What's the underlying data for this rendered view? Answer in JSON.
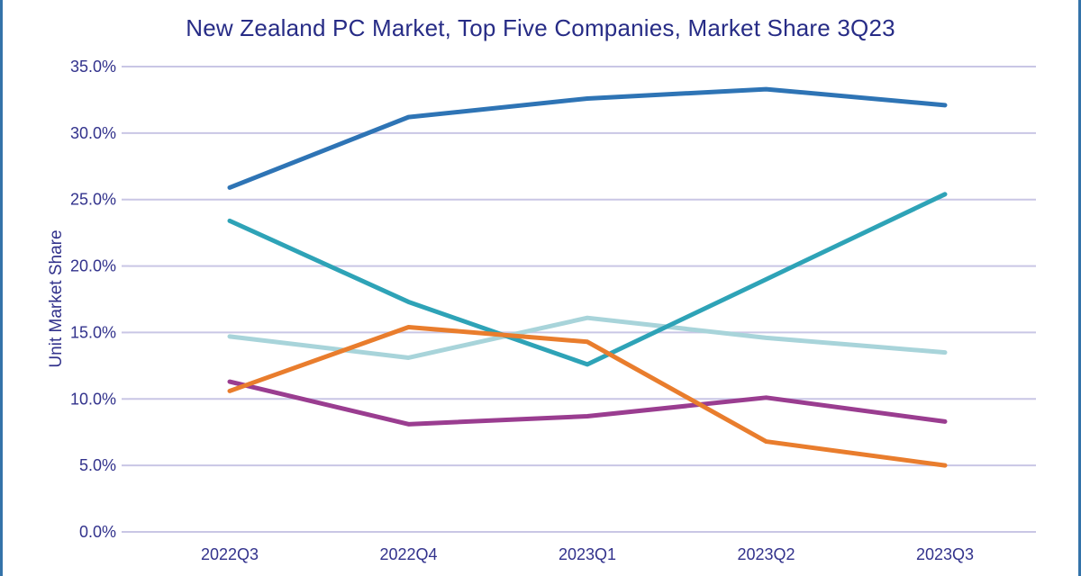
{
  "page": {
    "background": "#ffffff",
    "border_bar_color": "#3473a9"
  },
  "chart_data": {
    "type": "line",
    "title": "New Zealand PC Market, Top Five Companies, Market Share 3Q23",
    "xlabel": "",
    "ylabel": "Unit Market Share",
    "categories": [
      "2022Q3",
      "2022Q4",
      "2023Q1",
      "2023Q2",
      "2023Q3"
    ],
    "y_ticks": [
      "35.0%",
      "30.0%",
      "25.0%",
      "20.0%",
      "15.0%",
      "10.0%",
      "5.0%",
      "0.0%"
    ],
    "ylim": [
      0,
      35
    ],
    "y_tick_step": 5,
    "grid": true,
    "legend": "none",
    "series": [
      {
        "name": "light-blue-line",
        "color": "#a8d4da",
        "values": [
          14.7,
          13.1,
          16.1,
          14.6,
          13.5
        ]
      },
      {
        "name": "purple-line",
        "color": "#9a3d90",
        "values": [
          11.3,
          8.1,
          8.7,
          10.1,
          8.3
        ]
      },
      {
        "name": "teal-line",
        "color": "#2ea3b7",
        "values": [
          23.4,
          17.3,
          12.6,
          19.0,
          25.4
        ]
      },
      {
        "name": "orange-line",
        "color": "#e97d2d",
        "values": [
          10.6,
          15.4,
          14.3,
          6.8,
          5.0
        ]
      },
      {
        "name": "dark-blue-line",
        "color": "#2e74b5",
        "values": [
          25.9,
          31.2,
          32.6,
          33.3,
          32.1
        ]
      }
    ],
    "style": {
      "gridline_color": "#c9c6e5",
      "axis_text_color": "#32328c",
      "title_color": "#272c86",
      "line_width": 5
    }
  }
}
